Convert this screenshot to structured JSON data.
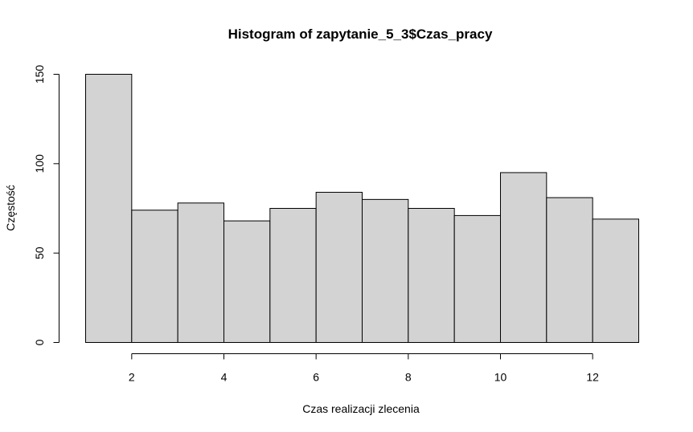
{
  "chart_data": {
    "type": "bar",
    "title": "Histogram of zapytanie_5_3$Czas_pracy",
    "xlabel": "Czas realizacji zlecenia",
    "ylabel": "Częstość",
    "bins": [
      [
        1,
        2
      ],
      [
        2,
        3
      ],
      [
        3,
        4
      ],
      [
        4,
        5
      ],
      [
        5,
        6
      ],
      [
        6,
        7
      ],
      [
        7,
        8
      ],
      [
        8,
        9
      ],
      [
        9,
        10
      ],
      [
        10,
        11
      ],
      [
        11,
        12
      ],
      [
        12,
        13
      ]
    ],
    "values": [
      150,
      74,
      78,
      68,
      75,
      84,
      80,
      75,
      71,
      95,
      81,
      69
    ],
    "xlim": [
      1,
      13
    ],
    "ylim": [
      0,
      150
    ],
    "x_ticks": [
      2,
      4,
      6,
      8,
      10,
      12
    ],
    "y_ticks": [
      0,
      50,
      100,
      150
    ],
    "bar_fill": "#d3d3d3",
    "bar_stroke": "#000000",
    "grid": false
  }
}
